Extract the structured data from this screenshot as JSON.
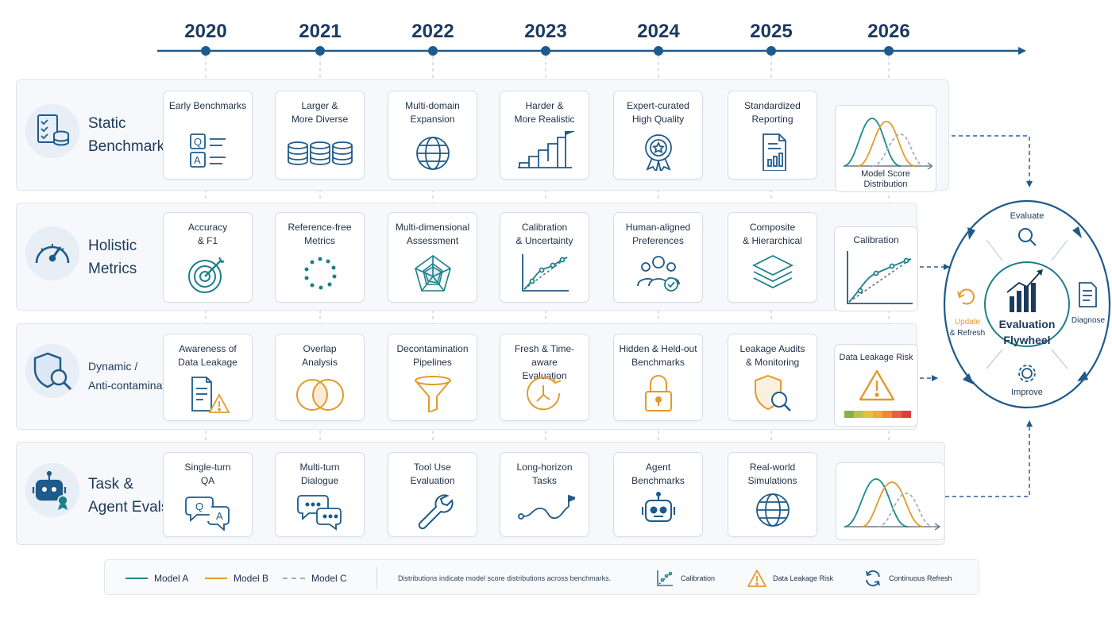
{
  "timeline": {
    "years": [
      "2020",
      "2021",
      "2022",
      "2023",
      "2024",
      "2025",
      "2026"
    ]
  },
  "lanes": [
    {
      "title": "Static\nBenchmarks",
      "icon": "checklist-database-icon",
      "cards": [
        {
          "label": "Early Benchmarks",
          "icon": "qa-list-icon"
        },
        {
          "label": "Larger &\nMore Diverse",
          "icon": "database-stack-icon"
        },
        {
          "label": "Multi-domain\nExpansion",
          "icon": "globe-icon"
        },
        {
          "label": "Harder &\nMore Realistic",
          "icon": "stairs-flag-icon"
        },
        {
          "label": "Expert-curated\nHigh Quality",
          "icon": "award-ribbon-icon"
        },
        {
          "label": "Standardized\nReporting",
          "icon": "report-document-icon"
        }
      ],
      "end": {
        "label": "Model Score\nDistribution",
        "icon": "distribution-curves-icon"
      }
    },
    {
      "title": "Holistic\nMetrics",
      "icon": "speedometer-icon",
      "cards": [
        {
          "label": "Accuracy\n& F1",
          "icon": "target-arrow-icon"
        },
        {
          "label": "Reference-free\nMetrics",
          "icon": "dotted-circle-icon"
        },
        {
          "label": "Multi-dimensional\nAssessment",
          "icon": "radar-chart-icon"
        },
        {
          "label": "Calibration\n& Uncertainty",
          "icon": "calibration-chart-icon"
        },
        {
          "label": "Human-aligned\nPreferences",
          "icon": "people-check-icon"
        },
        {
          "label": "Composite\n& Hierarchical",
          "icon": "layers-icon"
        }
      ],
      "end": {
        "label": "Calibration",
        "icon": "calibration-curve-icon"
      }
    },
    {
      "title": "Dynamic /\nAnti-contamination",
      "icon": "shield-search-icon",
      "cards": [
        {
          "label": "Awareness of\nData Leakage",
          "icon": "document-warning-icon"
        },
        {
          "label": "Overlap\nAnalysis",
          "icon": "venn-diagram-icon"
        },
        {
          "label": "Decontamination\nPipelines",
          "icon": "funnel-icon"
        },
        {
          "label": "Fresh & Time-aware\nEvaluation",
          "icon": "clock-refresh-icon"
        },
        {
          "label": "Hidden & Held-out\nBenchmarks",
          "icon": "padlock-icon"
        },
        {
          "label": "Leakage Audits\n& Monitoring",
          "icon": "shield-magnifier-icon"
        }
      ],
      "end": {
        "label": "Data Leakage Risk",
        "icon": "warning-triangle-icon"
      }
    },
    {
      "title": "Task &\nAgent Evals",
      "icon": "robot-badge-icon",
      "cards": [
        {
          "label": "Single-turn\nQA",
          "icon": "qa-bubbles-icon"
        },
        {
          "label": "Multi-turn\nDialogue",
          "icon": "chat-bubbles-icon"
        },
        {
          "label": "Tool Use\nEvaluation",
          "icon": "wrench-icon"
        },
        {
          "label": "Long-horizon\nTasks",
          "icon": "path-flag-icon"
        },
        {
          "label": "Agent\nBenchmarks",
          "icon": "robot-icon"
        },
        {
          "label": "Real-world\nSimulations",
          "icon": "globe-icon"
        }
      ],
      "end": {
        "label": "",
        "icon": "distribution-curves-icon"
      }
    }
  ],
  "flywheel": {
    "center": "Evaluation\nFlywheel",
    "evaluate": "Evaluate",
    "diagnose": "Diagnose",
    "improve": "Improve",
    "update": "Update",
    "refresh": "& Refresh"
  },
  "legend": {
    "model_a": "Model A",
    "model_b": "Model B",
    "model_c": "Model C",
    "note": "Distributions indicate model score distributions across benchmarks.",
    "calibration": "Calibration",
    "leakage": "Data Leakage Risk",
    "refresh": "Continuous Refresh"
  },
  "colors": {
    "navy": "#1d3a5c",
    "timeline": "#1e5a8a",
    "teal": "#1b7f8a",
    "blue": "#2a5fa0",
    "orange": "#e39a2b",
    "gray": "#9aa3ad",
    "model_a": "#1b8a8a",
    "model_b": "#e39a2b",
    "model_c": "#a5acb5"
  }
}
